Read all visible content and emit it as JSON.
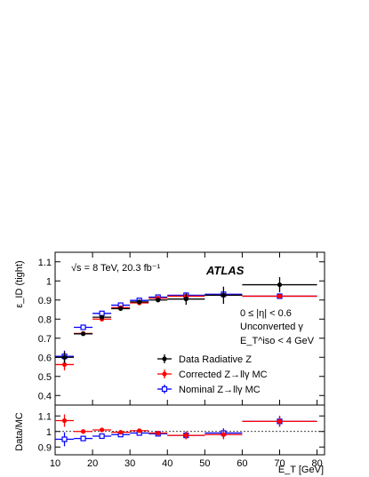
{
  "chart_data": [
    {
      "type": "scatter",
      "title": "",
      "xlabel": "",
      "ylabel": "ε_ID (tight)",
      "xlim": [
        10,
        82
      ],
      "ylim": [
        0.35,
        1.15
      ],
      "yticks": [
        0.4,
        0.5,
        0.6,
        0.7,
        0.8,
        0.9,
        1,
        1.1
      ],
      "texts": {
        "energy": "√s = 8 TeV, 20.3 fb⁻¹",
        "experiment": "ATLAS",
        "region": "0 ≤ |η| < 0.6",
        "conversion": "Unconverted γ",
        "iso": "E_T^iso < 4 GeV"
      },
      "legend_position": "bottom-right",
      "series": [
        {
          "name": "Data Radiative Z",
          "color": "#000000",
          "marker": "filled-circle",
          "x": [
            12.5,
            17.5,
            22.5,
            27.5,
            32.5,
            37.5,
            45,
            55,
            70
          ],
          "xerr": [
            2.5,
            2.5,
            2.5,
            2.5,
            2.5,
            2.5,
            5,
            5,
            10
          ],
          "y": [
            0.6,
            0.723,
            0.81,
            0.855,
            0.89,
            0.9,
            0.905,
            0.925,
            0.98
          ],
          "yerr": [
            0.03,
            0.008,
            0.007,
            0.007,
            0.008,
            0.012,
            0.03,
            0.045,
            0.04
          ]
        },
        {
          "name": "Corrected Z→llγ MC",
          "color": "#ff0000",
          "marker": "filled-circle",
          "x": [
            12.5,
            17.5,
            22.5,
            27.5,
            32.5,
            37.5,
            45,
            55,
            70
          ],
          "xerr": [
            2.5,
            2.5,
            2.5,
            2.5,
            2.5,
            2.5,
            5,
            5,
            10
          ],
          "y": [
            0.562,
            0.725,
            0.8,
            0.86,
            0.885,
            0.91,
            0.92,
            0.925,
            0.92
          ],
          "yerr": [
            0.03,
            0.006,
            0.005,
            0.005,
            0.005,
            0.006,
            0.006,
            0.008,
            0.008
          ]
        },
        {
          "name": "Nominal Z→llγ MC",
          "color": "#0000ff",
          "marker": "open-square",
          "x": [
            12.5,
            17.5,
            22.5,
            27.5,
            32.5,
            37.5,
            45,
            55,
            70
          ],
          "xerr": [
            2.5,
            2.5,
            2.5,
            2.5,
            2.5,
            2.5,
            5,
            5,
            10
          ],
          "y": [
            0.605,
            0.757,
            0.83,
            0.873,
            0.898,
            0.915,
            0.925,
            0.93,
            0.92
          ],
          "yerr": [
            0.03,
            0.006,
            0.005,
            0.005,
            0.005,
            0.006,
            0.006,
            0.008,
            0.008
          ]
        }
      ]
    },
    {
      "type": "scatter",
      "title": "",
      "xlabel": "E_T [GeV]",
      "ylabel": "Data/MC",
      "xlim": [
        10,
        82
      ],
      "ylim": [
        0.85,
        1.17
      ],
      "xticks": [
        10,
        20,
        30,
        40,
        50,
        60,
        70,
        80
      ],
      "yticks": [
        0.9,
        1,
        1.1
      ],
      "reference_line": 1,
      "series": [
        {
          "name": "Corrected Z→llγ MC",
          "color": "#ff0000",
          "marker": "filled-circle",
          "x": [
            12.5,
            17.5,
            22.5,
            27.5,
            32.5,
            37.5,
            45,
            55,
            70
          ],
          "xerr": [
            2.5,
            2.5,
            2.5,
            2.5,
            2.5,
            2.5,
            5,
            5,
            10
          ],
          "y": [
            1.07,
            1.0,
            1.01,
            0.995,
            1.005,
            0.99,
            0.975,
            0.98,
            1.065
          ],
          "yerr": [
            0.04,
            0.012,
            0.01,
            0.01,
            0.01,
            0.012,
            0.025,
            0.03,
            0.035
          ]
        },
        {
          "name": "Nominal Z→llγ MC",
          "color": "#0000ff",
          "marker": "open-square",
          "x": [
            12.5,
            17.5,
            22.5,
            27.5,
            32.5,
            37.5,
            45,
            55,
            70
          ],
          "xerr": [
            2.5,
            2.5,
            2.5,
            2.5,
            2.5,
            2.5,
            5,
            5,
            10
          ],
          "y": [
            0.95,
            0.955,
            0.97,
            0.98,
            0.99,
            0.985,
            0.975,
            0.99,
            1.065
          ],
          "yerr": [
            0.045,
            0.012,
            0.01,
            0.01,
            0.01,
            0.012,
            0.025,
            0.03,
            0.035
          ]
        }
      ]
    }
  ]
}
